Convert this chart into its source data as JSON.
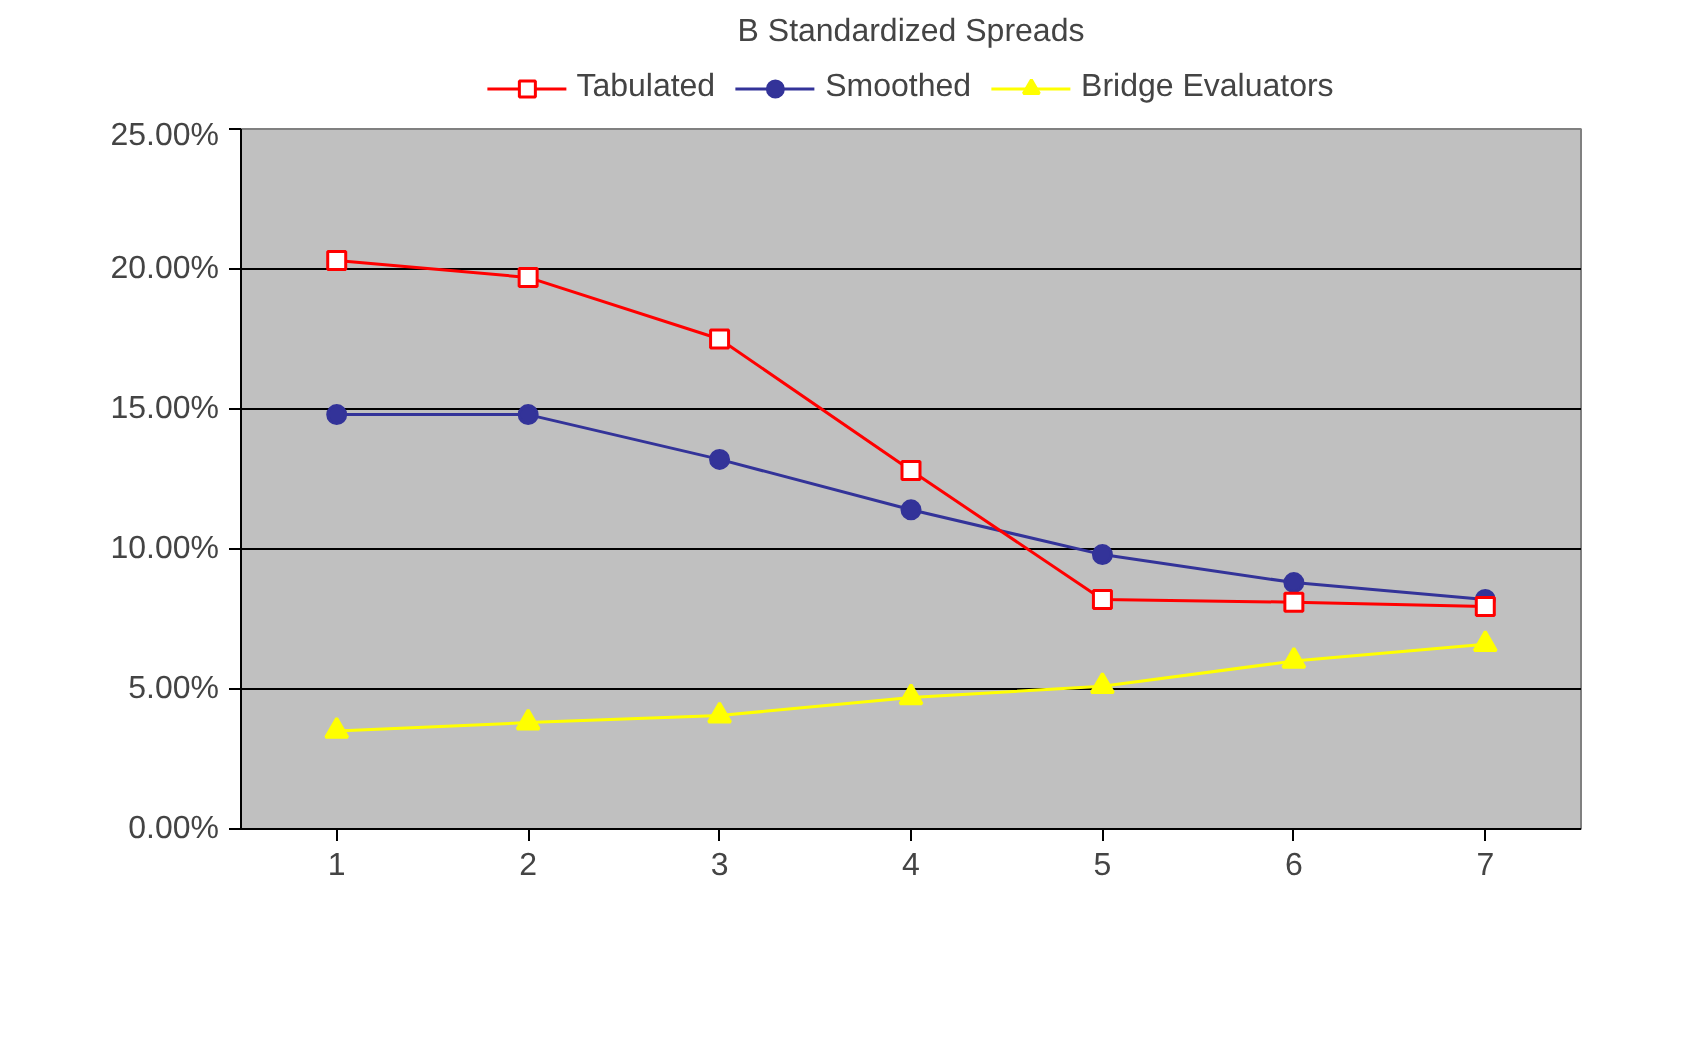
{
  "chart_data": {
    "type": "line",
    "title": "B Standardized Spreads",
    "categories": [
      "1",
      "2",
      "3",
      "4",
      "5",
      "6",
      "7"
    ],
    "series": [
      {
        "name": "Tabulated",
        "color": "#ff0000",
        "marker": "square",
        "values": [
          20.3,
          19.7,
          17.5,
          12.8,
          8.2,
          8.1,
          7.95
        ]
      },
      {
        "name": "Smoothed",
        "color": "#333399",
        "marker": "circle",
        "values": [
          14.8,
          14.8,
          13.2,
          11.4,
          9.8,
          8.8,
          8.2
        ]
      },
      {
        "name": "Bridge Evaluators",
        "color": "#ffff00",
        "marker": "triangle",
        "values": [
          3.5,
          3.8,
          4.05,
          4.7,
          5.1,
          6.0,
          6.6
        ]
      }
    ],
    "ylim": [
      0,
      25
    ],
    "yticks": [
      {
        "value": 0,
        "label": "0.00%"
      },
      {
        "value": 5,
        "label": "5.00%"
      },
      {
        "value": 10,
        "label": "10.00%"
      },
      {
        "value": 15,
        "label": "15.00%"
      },
      {
        "value": 20,
        "label": "20.00%"
      },
      {
        "value": 25,
        "label": "25.00%"
      }
    ],
    "grid": "y",
    "legend": "top",
    "line_style": "solid"
  }
}
